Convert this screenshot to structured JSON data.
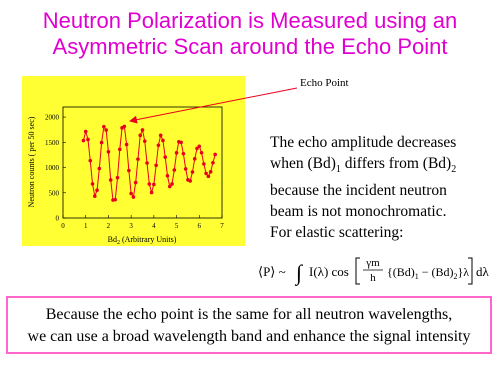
{
  "title_lines": [
    "Neutron Polarization is Measured using an",
    "Asymmetric Scan around the Echo Point"
  ],
  "chart_data": {
    "type": "line",
    "y_label": "Neutron counts ( per 50 sec)",
    "x_label": [
      "Bd",
      "2",
      " (Arbitrary Units)"
    ],
    "annotation": "Echo Point",
    "color": "#e8001c",
    "background": "#ffff33",
    "xlim": [
      0,
      7
    ],
    "xticks": [
      0,
      1,
      2,
      3,
      4,
      5,
      6,
      7
    ],
    "ylim": [
      0,
      2200
    ],
    "yticks": [
      0,
      500,
      1000,
      1500,
      2000
    ],
    "x": [
      0.9,
      1.0,
      1.1,
      1.2,
      1.3,
      1.4,
      1.5,
      1.6,
      1.7,
      1.8,
      1.9,
      2.0,
      2.1,
      2.2,
      2.3,
      2.4,
      2.5,
      2.6,
      2.7,
      2.8,
      2.9,
      3.0,
      3.1,
      3.2,
      3.3,
      3.4,
      3.5,
      3.6,
      3.7,
      3.8,
      3.9,
      4.0,
      4.1,
      4.2,
      4.3,
      4.4,
      4.5,
      4.6,
      4.7,
      4.8,
      4.9,
      5.0,
      5.1,
      5.2,
      5.3,
      5.4,
      5.5,
      5.6,
      5.7,
      5.8,
      5.9,
      6.0,
      6.1,
      6.2,
      6.3,
      6.4,
      6.5,
      6.6,
      6.7
    ],
    "values": [
      1536,
      1714,
      1557,
      1137,
      676,
      433,
      551,
      981,
      1495,
      1811,
      1744,
      1312,
      754,
      357,
      364,
      799,
      1361,
      1787,
      1815,
      1457,
      940,
      485,
      415,
      703,
      1167,
      1638,
      1745,
      1523,
      1089,
      674,
      506,
      665,
      1045,
      1441,
      1638,
      1537,
      1207,
      837,
      624,
      675,
      951,
      1292,
      1511,
      1499,
      1276,
      973,
      756,
      735,
      911,
      1173,
      1379,
      1422,
      1293,
      1072,
      884,
      825,
      915,
      1095,
      1259
    ]
  },
  "paragraph": [
    [
      "The echo amplitude decreases"
    ],
    [
      "when (Bd)",
      "1",
      " differs from (Bd)",
      "2"
    ],
    [
      "because the incident neutron"
    ],
    [
      "beam is not monochromatic."
    ],
    [
      "For elastic scattering:"
    ]
  ],
  "formula": {
    "lhs": "⟨P⟩ ~",
    "integral": "∫",
    "integrand": "I(λ) cos",
    "numerator": "γm",
    "denominator": "h",
    "bracket": [
      "{(Bd)",
      "1",
      " − (Bd)",
      "2",
      "}λ"
    ],
    "tail": "dλ"
  },
  "footer_lines": [
    "Because the echo point is the same for all neutron wavelengths,",
    "we can use a broad wavelength band and enhance the signal intensity"
  ]
}
